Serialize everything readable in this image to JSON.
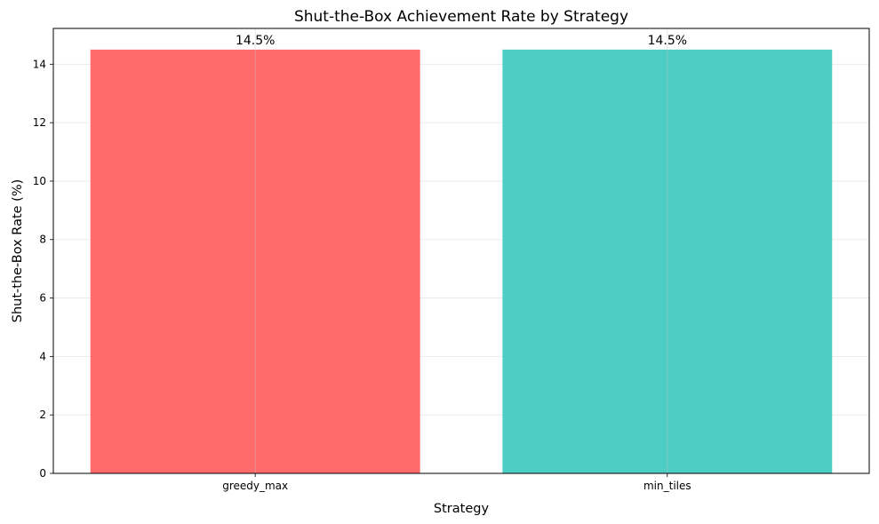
{
  "chart_data": {
    "type": "bar",
    "title": "Shut-the-Box Achievement Rate by Strategy",
    "xlabel": "Strategy",
    "ylabel": "Shut-the-Box Rate (%)",
    "categories": [
      "greedy_max",
      "min_tiles"
    ],
    "values": [
      14.5,
      14.5
    ],
    "value_labels": [
      "14.5%",
      "14.5%"
    ],
    "colors": [
      "#FF6B6B",
      "#4ECDC4"
    ],
    "ylim": [
      0,
      15.225
    ],
    "yticks": [
      0,
      2,
      4,
      6,
      8,
      10,
      12,
      14
    ],
    "grid": true
  }
}
